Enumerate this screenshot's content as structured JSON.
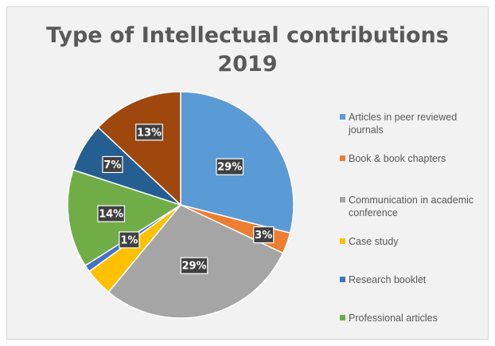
{
  "chart_data": {
    "type": "pie",
    "title": "Type of Intellectual contributions 2019",
    "title_lines": [
      "Type of Intellectual contributions",
      "2019"
    ],
    "slices": [
      {
        "name": "Articles in peer reviewed journals",
        "value": 29,
        "label": "29%",
        "color": "#5b9bd5"
      },
      {
        "name": "Book & book chapters",
        "value": 3,
        "label": "3%",
        "color": "#ed7d31"
      },
      {
        "name": "Communication in academic conference",
        "value": 29,
        "label": "29%",
        "color": "#a5a5a5"
      },
      {
        "name": "Case study",
        "value": 4,
        "label": "",
        "color": "#ffc000"
      },
      {
        "name": "Research booklet",
        "value": 1,
        "label": "1%",
        "color": "#4472c4"
      },
      {
        "name": "Professional articles",
        "value": 14,
        "label": "14%",
        "color": "#70ad47"
      },
      {
        "name": "",
        "value": 7,
        "label": "7%",
        "color": "#255e91"
      },
      {
        "name": "",
        "value": 13,
        "label": "13%",
        "color": "#9e480e"
      }
    ],
    "legend_position": "right"
  }
}
